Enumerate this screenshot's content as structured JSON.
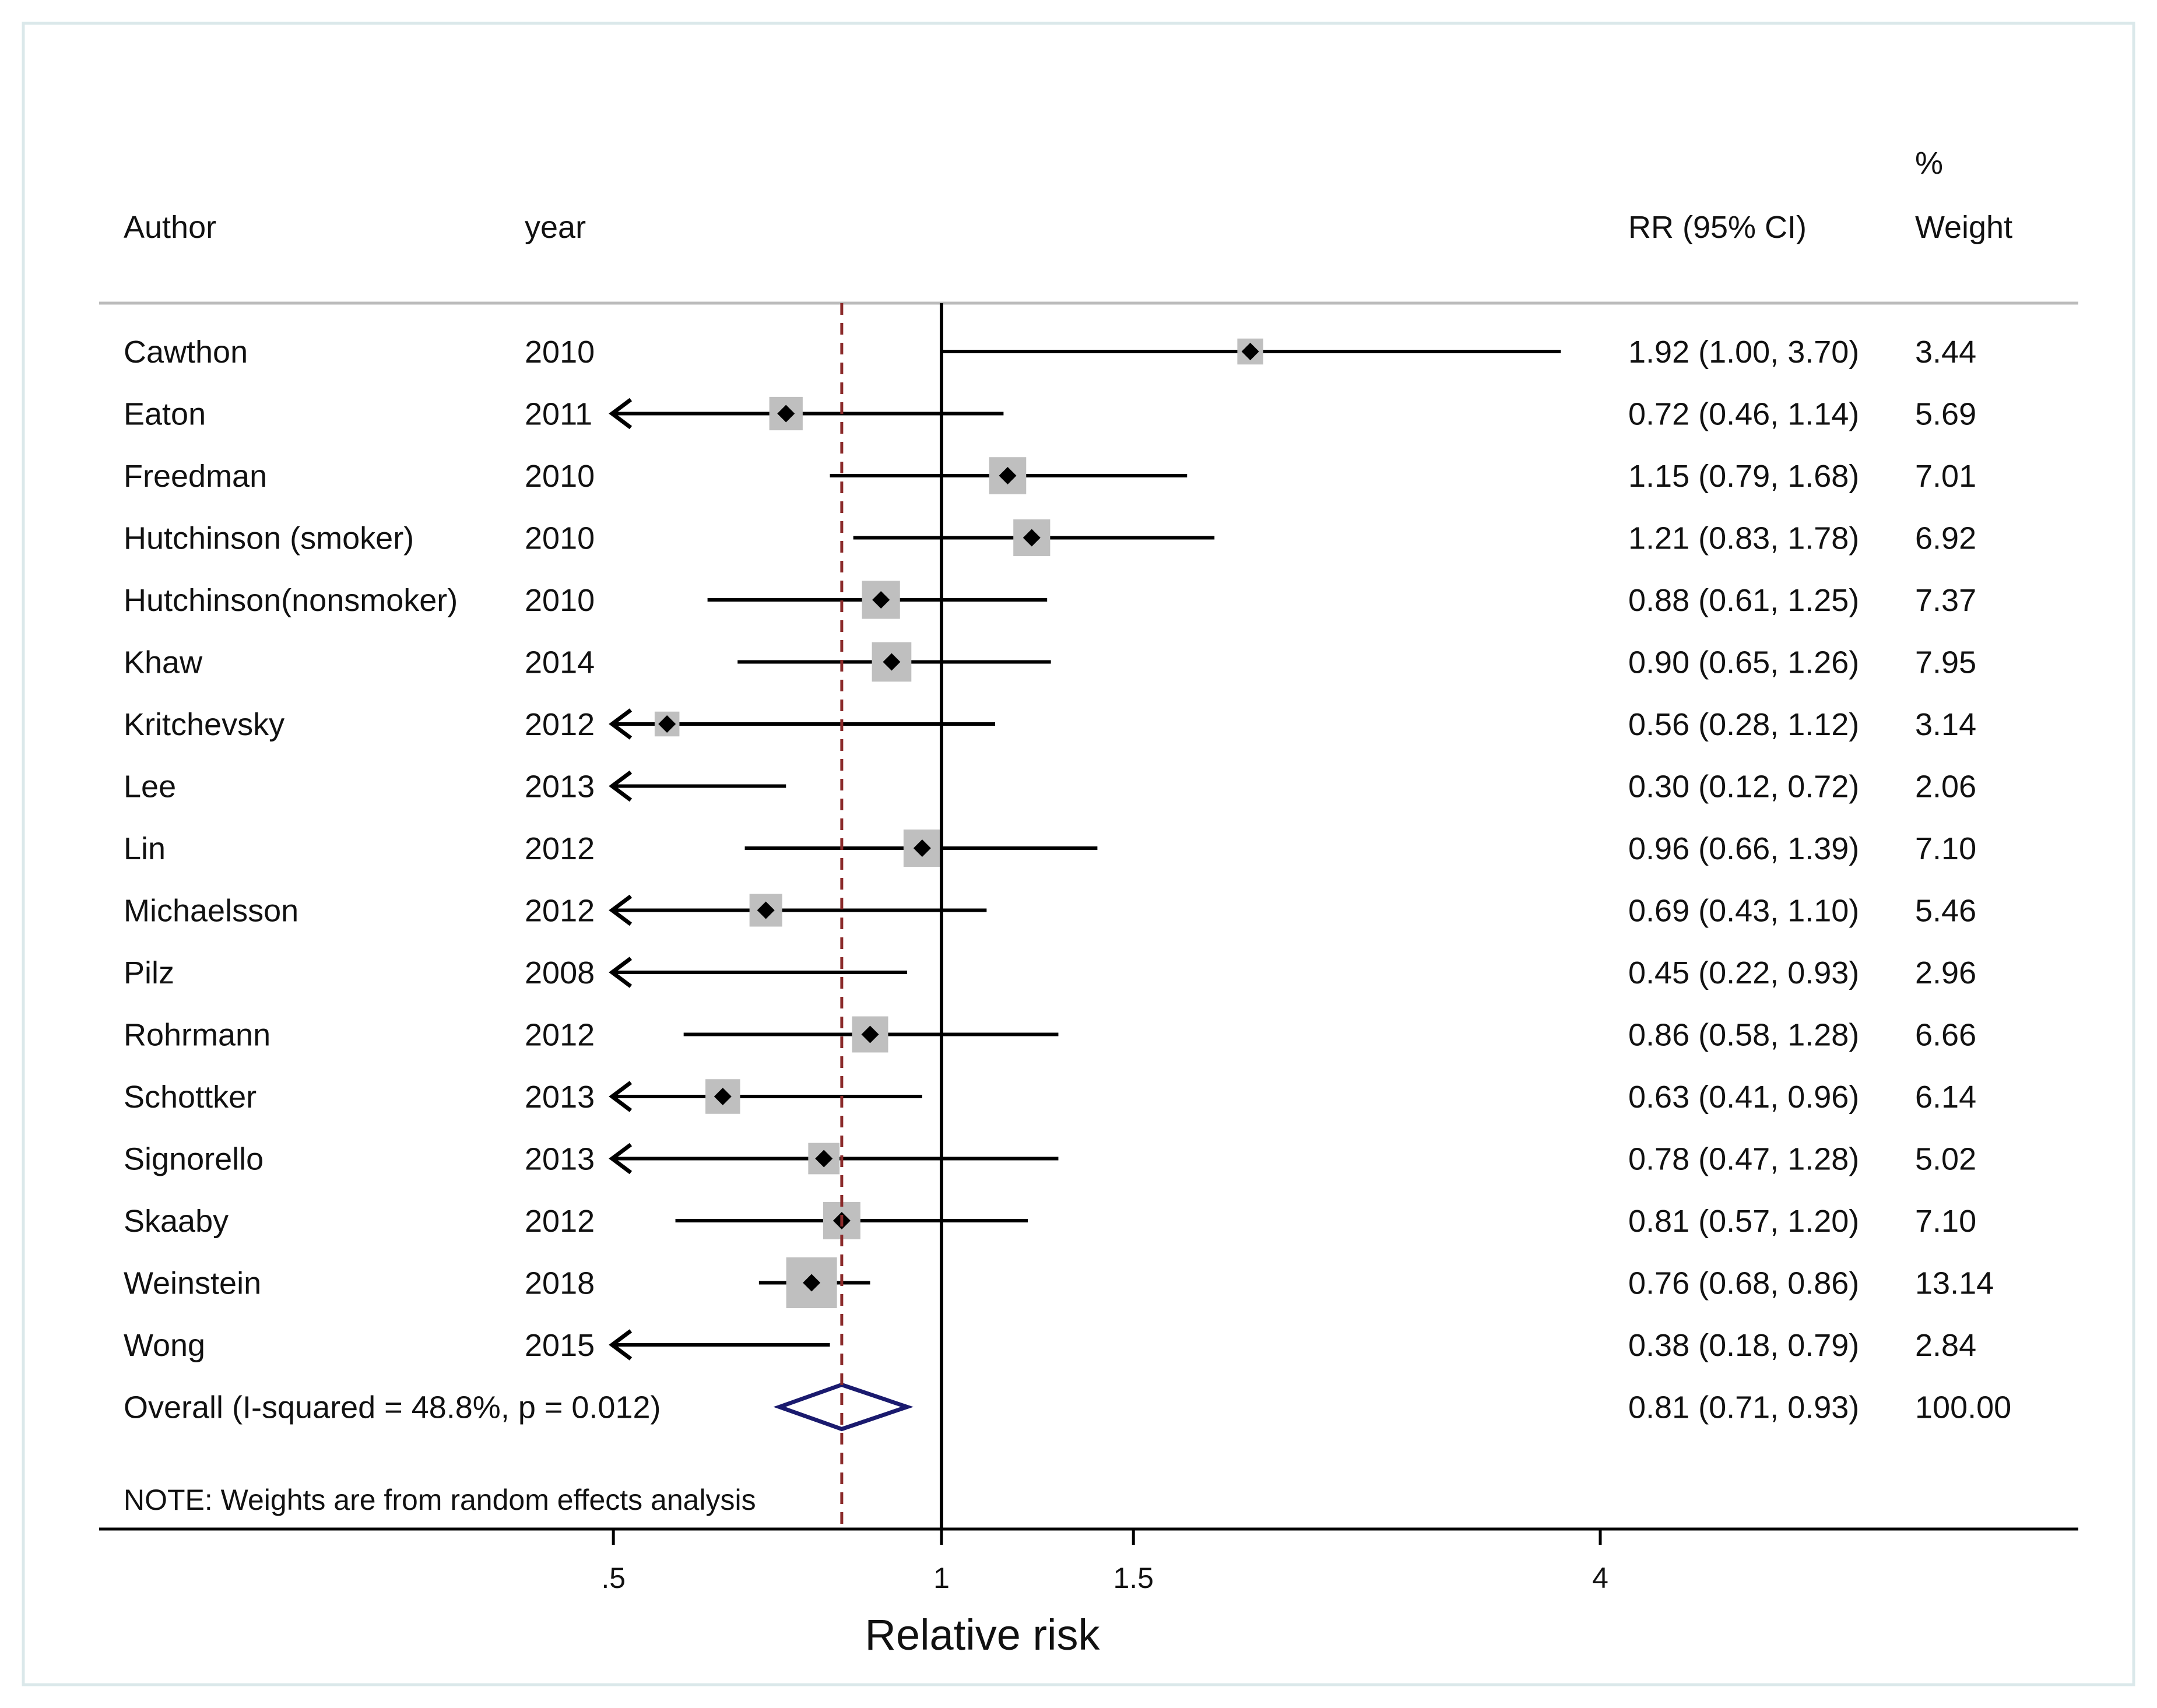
{
  "chart_data": {
    "type": "forest",
    "columns": {
      "author": "Author",
      "year": "year",
      "effect": "RR (95% CI)",
      "weight_top": "%",
      "weight": "Weight"
    },
    "studies": [
      {
        "author": "Cawthon",
        "year": "2010",
        "rr": 1.92,
        "lo": 1.0,
        "hi": 3.7,
        "ci_text": "1.92 (1.00, 3.70)",
        "weight": 3.44,
        "weight_text": "3.44"
      },
      {
        "author": "Eaton",
        "year": "2011",
        "rr": 0.72,
        "lo": 0.46,
        "hi": 1.14,
        "ci_text": "0.72 (0.46, 1.14)",
        "weight": 5.69,
        "weight_text": "5.69"
      },
      {
        "author": "Freedman",
        "year": "2010",
        "rr": 1.15,
        "lo": 0.79,
        "hi": 1.68,
        "ci_text": "1.15 (0.79, 1.68)",
        "weight": 7.01,
        "weight_text": "7.01"
      },
      {
        "author": "Hutchinson  (smoker)",
        "year": "2010",
        "rr": 1.21,
        "lo": 0.83,
        "hi": 1.78,
        "ci_text": "1.21 (0.83, 1.78)",
        "weight": 6.92,
        "weight_text": "6.92"
      },
      {
        "author": "Hutchinson(nonsmoker)",
        "year": "2010",
        "rr": 0.88,
        "lo": 0.61,
        "hi": 1.25,
        "ci_text": "0.88 (0.61, 1.25)",
        "weight": 7.37,
        "weight_text": "7.37"
      },
      {
        "author": "Khaw",
        "year": "2014",
        "rr": 0.9,
        "lo": 0.65,
        "hi": 1.26,
        "ci_text": "0.90 (0.65, 1.26)",
        "weight": 7.95,
        "weight_text": "7.95"
      },
      {
        "author": "Kritchevsky",
        "year": "2012",
        "rr": 0.56,
        "lo": 0.28,
        "hi": 1.12,
        "ci_text": "0.56 (0.28, 1.12)",
        "weight": 3.14,
        "weight_text": "3.14"
      },
      {
        "author": "Lee",
        "year": "2013",
        "rr": 0.3,
        "lo": 0.12,
        "hi": 0.72,
        "ci_text": "0.30 (0.12, 0.72)",
        "weight": 2.06,
        "weight_text": "2.06"
      },
      {
        "author": "Lin",
        "year": "2012",
        "rr": 0.96,
        "lo": 0.66,
        "hi": 1.39,
        "ci_text": "0.96 (0.66, 1.39)",
        "weight": 7.1,
        "weight_text": "7.10"
      },
      {
        "author": "Michaelsson",
        "year": "2012",
        "rr": 0.69,
        "lo": 0.43,
        "hi": 1.1,
        "ci_text": "0.69 (0.43, 1.10)",
        "weight": 5.46,
        "weight_text": "5.46"
      },
      {
        "author": "Pilz",
        "year": "2008",
        "rr": 0.45,
        "lo": 0.22,
        "hi": 0.93,
        "ci_text": "0.45 (0.22, 0.93)",
        "weight": 2.96,
        "weight_text": "2.96"
      },
      {
        "author": "Rohrmann",
        "year": "2012",
        "rr": 0.86,
        "lo": 0.58,
        "hi": 1.28,
        "ci_text": "0.86 (0.58, 1.28)",
        "weight": 6.66,
        "weight_text": "6.66"
      },
      {
        "author": "Schottker",
        "year": "2013",
        "rr": 0.63,
        "lo": 0.41,
        "hi": 0.96,
        "ci_text": "0.63 (0.41, 0.96)",
        "weight": 6.14,
        "weight_text": "6.14"
      },
      {
        "author": "Signorello",
        "year": "2013",
        "rr": 0.78,
        "lo": 0.47,
        "hi": 1.28,
        "ci_text": "0.78 (0.47, 1.28)",
        "weight": 5.02,
        "weight_text": "5.02"
      },
      {
        "author": "Skaaby",
        "year": "2012",
        "rr": 0.81,
        "lo": 0.57,
        "hi": 1.2,
        "ci_text": "0.81 (0.57, 1.20)",
        "weight": 7.1,
        "weight_text": "7.10"
      },
      {
        "author": "Weinstein",
        "year": "2018",
        "rr": 0.76,
        "lo": 0.68,
        "hi": 0.86,
        "ci_text": "0.76 (0.68, 0.86)",
        "weight": 13.14,
        "weight_text": "13.14"
      },
      {
        "author": "Wong",
        "year": "2015",
        "rr": 0.38,
        "lo": 0.18,
        "hi": 0.79,
        "ci_text": "0.38 (0.18, 0.79)",
        "weight": 2.84,
        "weight_text": "2.84"
      }
    ],
    "overall": {
      "label": "Overall  (I-squared = 48.8%, p = 0.012)",
      "rr": 0.81,
      "lo": 0.71,
      "hi": 0.93,
      "ci_text": "0.81 (0.71, 0.93)",
      "weight_text": "100.00"
    },
    "note": "NOTE: Weights are from random effects analysis",
    "xaxis": {
      "label": "Relative risk",
      "scale": "log",
      "ticks": [
        0.5,
        1,
        1.5,
        4
      ],
      "tick_labels": [
        ".5",
        "1",
        "1.5",
        "4"
      ],
      "range": [
        0.5,
        4
      ],
      "null_line": 1
    },
    "colors": {
      "text": "#111111",
      "line": "#000000",
      "box": "#bfbfbf",
      "overall_diamond": "#1a1a6e",
      "overall_dashed": "#8b2a2a",
      "header_rule": "#bbbbbb",
      "frame": "#dbe8ea"
    }
  }
}
